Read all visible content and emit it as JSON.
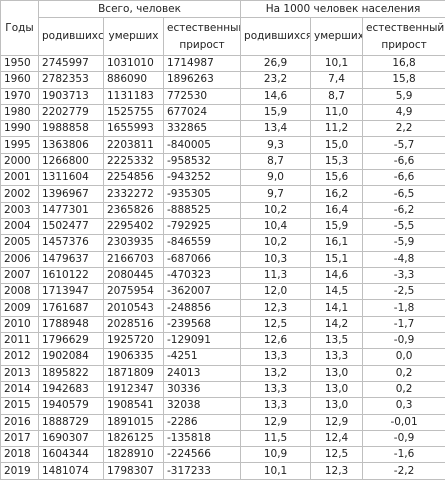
{
  "header": {
    "years": "Годы",
    "group_total": "Всего, человек",
    "group_per_1000": "На 1000 человек населения",
    "columns": [
      "родившихся",
      "умерших",
      "естественный прирост",
      "родившихся",
      "умерших",
      "естественный прирост"
    ]
  },
  "table": {
    "rows": [
      [
        "1950",
        "2745997",
        "1031010",
        "1714987",
        "26,9",
        "10,1",
        "16,8"
      ],
      [
        "1960",
        "2782353",
        "886090",
        "1896263",
        "23,2",
        "7,4",
        "15,8"
      ],
      [
        "1970",
        "1903713",
        "1131183",
        "772530",
        "14,6",
        "8,7",
        "5,9"
      ],
      [
        "1980",
        "2202779",
        "1525755",
        "677024",
        "15,9",
        "11,0",
        "4,9"
      ],
      [
        "1990",
        "1988858",
        "1655993",
        "332865",
        "13,4",
        "11,2",
        "2,2"
      ],
      [
        "1995",
        "1363806",
        "2203811",
        "-840005",
        "9,3",
        "15,0",
        "-5,7"
      ],
      [
        "2000",
        "1266800",
        "2225332",
        "-958532",
        "8,7",
        "15,3",
        "-6,6"
      ],
      [
        "2001",
        "1311604",
        "2254856",
        "-943252",
        "9,0",
        "15,6",
        "-6,6"
      ],
      [
        "2002",
        "1396967",
        "2332272",
        "-935305",
        "9,7",
        "16,2",
        "-6,5"
      ],
      [
        "2003",
        "1477301",
        "2365826",
        "-888525",
        "10,2",
        "16,4",
        "-6,2"
      ],
      [
        "2004",
        "1502477",
        "2295402",
        "-792925",
        "10,4",
        "15,9",
        "-5,5"
      ],
      [
        "2005",
        "1457376",
        "2303935",
        "-846559",
        "10,2",
        "16,1",
        "-5,9"
      ],
      [
        "2006",
        "1479637",
        "2166703",
        "-687066",
        "10,3",
        "15,1",
        "-4,8"
      ],
      [
        "2007",
        "1610122",
        "2080445",
        "-470323",
        "11,3",
        "14,6",
        "-3,3"
      ],
      [
        "2008",
        "1713947",
        "2075954",
        "-362007",
        "12,0",
        "14,5",
        "-2,5"
      ],
      [
        "2009",
        "1761687",
        "2010543",
        "-248856",
        "12,3",
        "14,1",
        "-1,8"
      ],
      [
        "2010",
        "1788948",
        "2028516",
        "-239568",
        "12,5",
        "14,2",
        "-1,7"
      ],
      [
        "2011",
        "1796629",
        "1925720",
        "-129091",
        "12,6",
        "13,5",
        "-0,9"
      ],
      [
        "2012",
        "1902084",
        "1906335",
        "-4251",
        "13,3",
        "13,3",
        "0,0"
      ],
      [
        "2013",
        "1895822",
        "1871809",
        "24013",
        "13,2",
        "13,0",
        "0,2"
      ],
      [
        "2014",
        "1942683",
        "1912347",
        "30336",
        "13,3",
        "13,0",
        "0,2"
      ],
      [
        "2015",
        "1940579",
        "1908541",
        "32038",
        "13,3",
        "13,0",
        "0,3"
      ],
      [
        "2016",
        "1888729",
        "1891015",
        "-2286",
        "12,9",
        "12,9",
        "-0,01"
      ],
      [
        "2017",
        "1690307",
        "1826125",
        "-135818",
        "11,5",
        "12,4",
        "-0,9"
      ],
      [
        "2018",
        "1604344",
        "1828910",
        "-224566",
        "10,9",
        "12,5",
        "-1,6"
      ],
      [
        "2019",
        "1481074",
        "1798307",
        "-317233",
        "10,1",
        "12,3",
        "-2,2"
      ]
    ]
  }
}
